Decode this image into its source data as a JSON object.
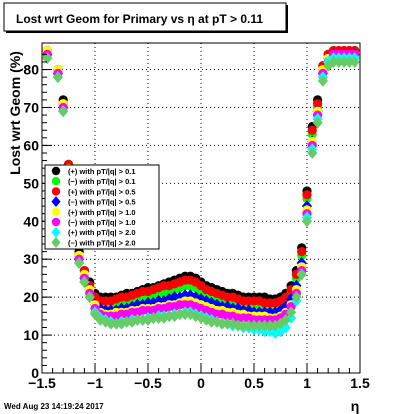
{
  "chart_data": {
    "type": "scatter",
    "title": "Lost wrt Geom for Primary vs   η at pT > 0.11",
    "xlabel": "η",
    "ylabel": "Lost wrt Geom (%)",
    "xlim": [
      -1.5,
      1.5
    ],
    "ylim": [
      0,
      87
    ],
    "x_ticks": [
      "−1.5",
      "−1",
      "−0.5",
      "0",
      "0.5",
      "1",
      "1.5"
    ],
    "y_ticks": [
      "0",
      "10",
      "20",
      "30",
      "40",
      "50",
      "60",
      "70",
      "80"
    ],
    "grid": true,
    "legend_position": "middle-left",
    "footer": "Wed Aug 23 14:19:24 2017",
    "x": [
      -1.45,
      -1.35,
      -1.3,
      -1.25,
      -1.2,
      -1.15,
      -1.1,
      -1.05,
      -1.0,
      -0.95,
      -0.9,
      -0.85,
      -0.8,
      -0.75,
      -0.7,
      -0.65,
      -0.6,
      -0.55,
      -0.5,
      -0.45,
      -0.4,
      -0.35,
      -0.3,
      -0.25,
      -0.2,
      -0.15,
      -0.1,
      -0.05,
      0.0,
      0.05,
      0.1,
      0.15,
      0.2,
      0.25,
      0.3,
      0.35,
      0.4,
      0.45,
      0.5,
      0.55,
      0.6,
      0.65,
      0.7,
      0.75,
      0.8,
      0.85,
      0.9,
      0.95,
      1.0,
      1.05,
      1.1,
      1.15,
      1.2,
      1.25,
      1.3,
      1.35,
      1.4,
      1.45
    ],
    "series": [
      {
        "name": "(+) with pT/|q| > 0.1",
        "color": "#000000",
        "shape": "circle",
        "values": [
          85,
          80,
          72,
          55,
          40,
          32,
          27,
          24,
          21,
          20,
          20,
          20,
          20,
          20.5,
          21,
          21,
          21.5,
          22,
          22.5,
          22.5,
          23,
          23.5,
          24,
          24.5,
          25,
          25.5,
          25.5,
          25,
          24,
          23,
          22.5,
          22,
          21.5,
          21,
          21,
          20.5,
          20,
          20,
          20,
          20,
          20,
          19.5,
          19.5,
          20,
          21,
          23,
          27,
          33,
          48,
          65,
          72,
          81,
          84,
          85,
          85,
          85,
          85,
          85
        ]
      },
      {
        "name": "(−) with pT/|q| > 0.1",
        "color": "#00ff00",
        "shape": "circle",
        "values": [
          84,
          79,
          71,
          54,
          39,
          31,
          26,
          23,
          20,
          18,
          18,
          18,
          18,
          18.5,
          19,
          19,
          19.5,
          20,
          20,
          20.5,
          21,
          21,
          21.5,
          22,
          22.5,
          23,
          23,
          22.5,
          21.5,
          21,
          20.5,
          20,
          19.5,
          19,
          19,
          18.5,
          18,
          18,
          18,
          18,
          17.5,
          17.5,
          17.5,
          18,
          19,
          21,
          25,
          31,
          46,
          63,
          70,
          80,
          83,
          84,
          84,
          84,
          84,
          84
        ]
      },
      {
        "name": "(+) with pT/|q| > 0.5",
        "color": "#ff0000",
        "shape": "circle",
        "values": [
          85,
          80,
          71,
          55,
          40,
          31,
          27,
          23,
          20,
          19,
          19,
          19,
          19.5,
          20,
          20,
          20.5,
          21,
          21.5,
          21.5,
          22,
          22.5,
          23,
          23,
          23.5,
          24,
          24.5,
          24.5,
          24,
          23,
          22,
          21.5,
          21,
          20.5,
          20,
          20,
          19.5,
          19,
          19,
          19,
          19,
          18.5,
          18.5,
          18.5,
          19,
          20,
          22,
          26,
          32,
          47,
          64,
          71,
          81,
          84,
          85,
          85,
          85,
          85,
          85
        ]
      },
      {
        "name": "(−) with pT/|q| > 0.5",
        "color": "#0000ff",
        "shape": "diamond",
        "values": [
          84,
          79,
          70,
          54,
          38,
          30,
          25,
          22,
          18,
          17,
          16.5,
          16.5,
          16.5,
          17,
          17,
          17.5,
          18,
          18,
          18.5,
          18.5,
          19,
          19,
          19.5,
          20,
          20,
          20.5,
          20.5,
          20,
          19.5,
          19,
          18.5,
          18,
          17.5,
          17.5,
          17,
          17,
          16.5,
          16.5,
          16,
          16,
          16,
          16,
          16,
          16.5,
          17.5,
          19.5,
          23,
          29,
          44,
          61,
          69,
          79,
          83,
          84,
          84,
          84,
          84,
          84
        ]
      },
      {
        "name": "(+) with pT/|q| > 1.0",
        "color": "#ffff00",
        "shape": "circle",
        "values": [
          85,
          80,
          71,
          54,
          39,
          31,
          26,
          22,
          18,
          16,
          15.5,
          15.5,
          16,
          16,
          16,
          16.5,
          16.5,
          17,
          17,
          17,
          17.5,
          17.5,
          18,
          18,
          18.5,
          19,
          19,
          18.5,
          18,
          17.5,
          17,
          16.5,
          16.5,
          16,
          16,
          15.5,
          15.5,
          15,
          15,
          15,
          15,
          14.5,
          14.5,
          15,
          16,
          18,
          22,
          28,
          43,
          61,
          69,
          80,
          83,
          84,
          84,
          84,
          84,
          84
        ]
      },
      {
        "name": "(−) with pT/|q| > 1.0",
        "color": "#ff00ff",
        "shape": "circle",
        "values": [
          84,
          79,
          70,
          53,
          38,
          30,
          25,
          21,
          17,
          15.5,
          15,
          15,
          15,
          15.5,
          15.5,
          16,
          16,
          16.5,
          16.5,
          16.5,
          17,
          17,
          17.5,
          17.5,
          18,
          18,
          18,
          17.5,
          17,
          16.5,
          16,
          15.5,
          15.5,
          15,
          15,
          14.5,
          14.5,
          14.5,
          14,
          14,
          14,
          14,
          14,
          14.5,
          15.5,
          17.5,
          21,
          27,
          42,
          60,
          68,
          79,
          82,
          84,
          84,
          84,
          84,
          84
        ]
      },
      {
        "name": "(+) with pT/|q| > 2.0",
        "color": "#00ffff",
        "shape": "diamond",
        "values": [
          83,
          78,
          69,
          52,
          37,
          29,
          24,
          20,
          16,
          14.5,
          14,
          13.5,
          13,
          13.5,
          13.5,
          14,
          14,
          14,
          14.5,
          14.5,
          15,
          15,
          15,
          15.5,
          15.5,
          16,
          16,
          15.5,
          15,
          14.5,
          14,
          13.5,
          13,
          13,
          12.5,
          12.5,
          12,
          12,
          11.5,
          11.5,
          11,
          11,
          10.5,
          11,
          12,
          14.5,
          19,
          26,
          41,
          59,
          67,
          78,
          82,
          83,
          83,
          83,
          83,
          83
        ]
      },
      {
        "name": "(−) with pT/|q| > 2.0",
        "color": "#66cc66",
        "shape": "diamond",
        "values": [
          83,
          78,
          69,
          52,
          37,
          29,
          24,
          20,
          15.5,
          14,
          13.5,
          13,
          13,
          13,
          13.5,
          13.5,
          14,
          14,
          14,
          14.5,
          14.5,
          14.5,
          15,
          15,
          15.5,
          15.5,
          15.5,
          15,
          14.5,
          14,
          13.5,
          13.5,
          13,
          13,
          13,
          12.5,
          12.5,
          12.5,
          12.5,
          12.5,
          12.5,
          12.5,
          12.5,
          13,
          14,
          16,
          20,
          26,
          40,
          58,
          66,
          77,
          81,
          82,
          82,
          82,
          82,
          82
        ]
      }
    ]
  }
}
